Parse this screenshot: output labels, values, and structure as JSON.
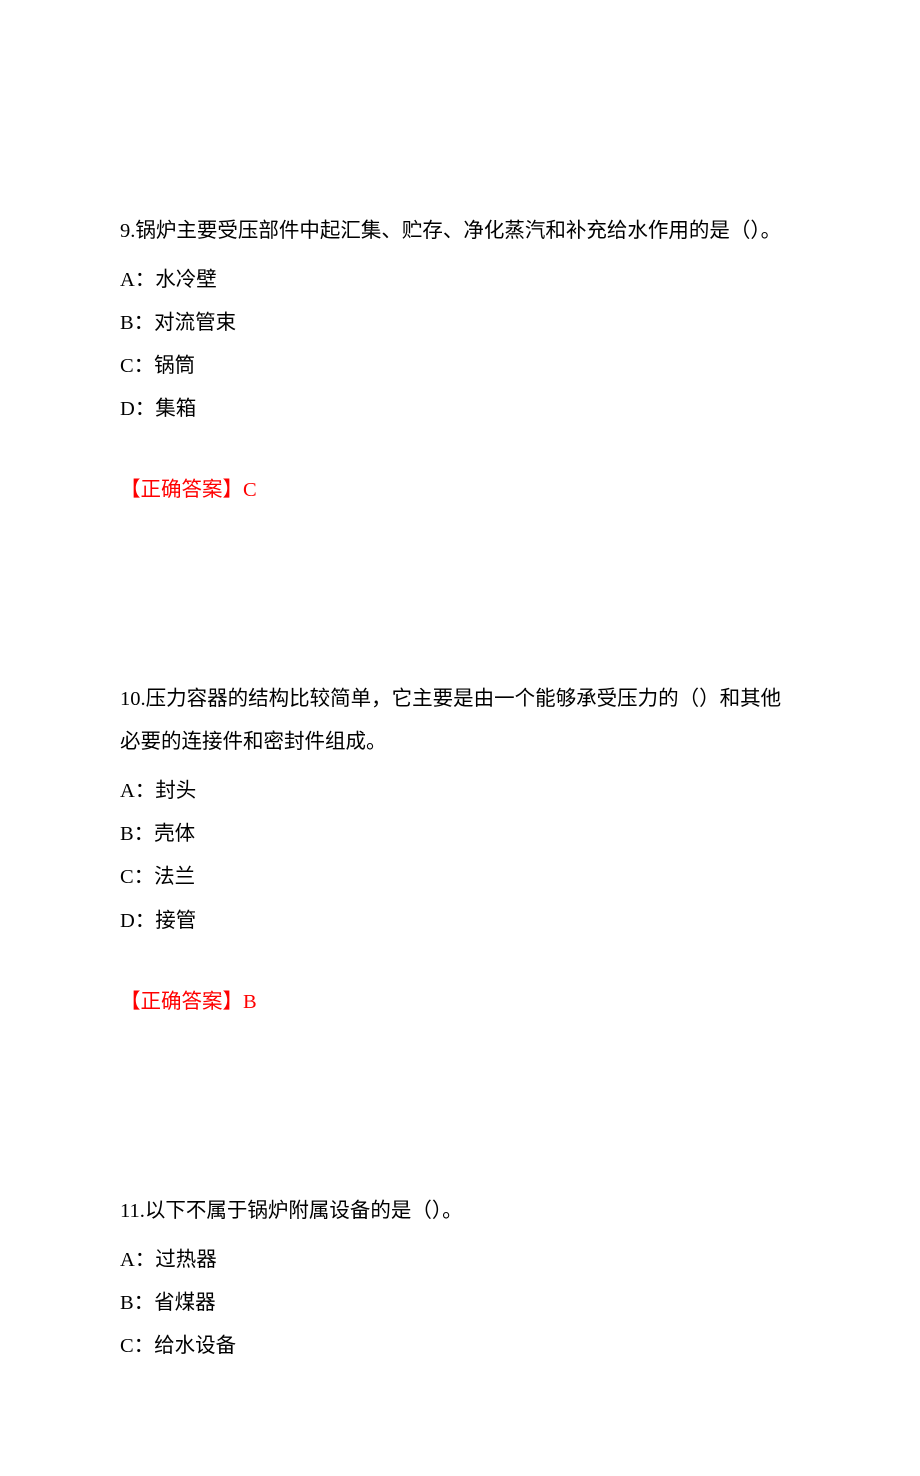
{
  "colors": {
    "text": "#000000",
    "answer": "#ff0000",
    "background": "#ffffff"
  },
  "typography": {
    "font_family": "SimSun",
    "font_size_pt": 15,
    "line_height": 2.1
  },
  "answer_label": "【正确答案】",
  "questions": [
    {
      "number": "9.",
      "text": "锅炉主要受压部件中起汇集、贮存、净化蒸汽和补充给水作用的是（）。",
      "options": {
        "A": "A：水冷壁",
        "B": "B：对流管束",
        "C": "C：锅筒",
        "D": "D：集箱"
      },
      "answer": "C"
    },
    {
      "number": "10.",
      "text": "压力容器的结构比较简单，它主要是由一个能够承受压力的（）和其他必要的连接件和密封件组成。",
      "options": {
        "A": "A：封头",
        "B": "B：壳体",
        "C": "C：法兰",
        "D": "D：接管"
      },
      "answer": "B"
    },
    {
      "number": "11.",
      "text": "以下不属于锅炉附属设备的是（）。",
      "options": {
        "A": "A：过热器",
        "B": "B：省煤器",
        "C": "C：给水设备"
      },
      "answer": null
    }
  ]
}
